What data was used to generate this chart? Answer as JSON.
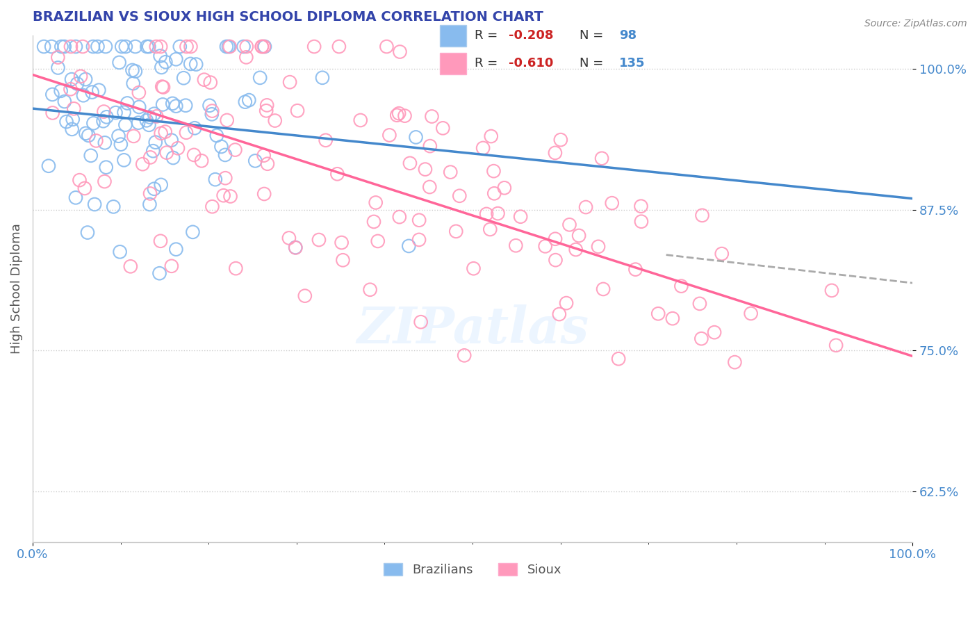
{
  "title": "BRAZILIAN VS SIOUX HIGH SCHOOL DIPLOMA CORRELATION CHART",
  "source": "Source: ZipAtlas.com",
  "ylabel": "High School Diploma",
  "xlabel": "",
  "xlim": [
    0.0,
    1.0
  ],
  "ylim": [
    0.58,
    1.03
  ],
  "yticks": [
    0.625,
    0.75,
    0.875,
    1.0
  ],
  "ytick_labels": [
    "62.5%",
    "75.0%",
    "87.5%",
    "100.0%"
  ],
  "xtick_labels": [
    "0.0%",
    "100.0%"
  ],
  "legend_entries": [
    {
      "label": "R = -0.208   N =  98",
      "color": "#88bbee"
    },
    {
      "label": "R = -0.610   N = 135",
      "color": "#ff99bb"
    }
  ],
  "watermark": "ZIPatlas",
  "title_color": "#3344aa",
  "title_fontsize": 14,
  "axis_color": "#aaaaaa",
  "background_color": "#ffffff",
  "scatter_blue_color": "#88bbee",
  "scatter_pink_color": "#ff99bb",
  "line_blue_color": "#4488cc",
  "line_pink_color": "#ff6699",
  "line_dashed_color": "#aaaaaa",
  "blue_R": -0.208,
  "blue_N": 98,
  "pink_R": -0.61,
  "pink_N": 135,
  "blue_line_x": [
    0.0,
    1.0
  ],
  "blue_line_y": [
    0.965,
    0.885
  ],
  "pink_line_x": [
    0.0,
    1.0
  ],
  "pink_line_y": [
    0.995,
    0.745
  ],
  "dashed_line_x": [
    0.72,
    1.0
  ],
  "dashed_line_y": [
    0.835,
    0.81
  ]
}
